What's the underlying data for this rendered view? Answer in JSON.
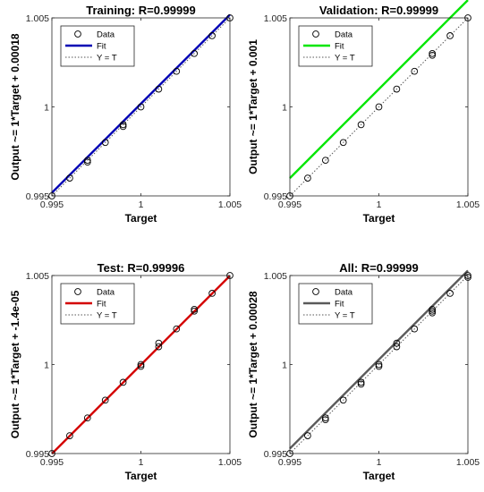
{
  "chart_data": [
    {
      "type": "scatter",
      "title": "Training: R=0.99999",
      "xlabel": "Target",
      "ylabel": "Output ~= 1*Target + 0.00018",
      "xlim": [
        0.995,
        1.005
      ],
      "ylim": [
        0.995,
        1.005
      ],
      "xticks": [
        "0.995",
        "1",
        "1.005"
      ],
      "yticks": [
        "0.995",
        "1",
        "1.005"
      ],
      "fit_color": "#0000b4",
      "legend": [
        "Data",
        "Fit",
        "Y = T"
      ],
      "legend_position": "top-left",
      "fit": {
        "slope": 1,
        "intercept": 0.00018
      },
      "points": [
        [
          0.995,
          0.995
        ],
        [
          0.996,
          0.996
        ],
        [
          0.997,
          0.9969
        ],
        [
          0.997,
          0.997
        ],
        [
          0.998,
          0.998
        ],
        [
          0.999,
          0.9989
        ],
        [
          0.999,
          0.999
        ],
        [
          1.0,
          1.0
        ],
        [
          1.001,
          1.001
        ],
        [
          1.002,
          1.002
        ],
        [
          1.003,
          1.003
        ],
        [
          1.004,
          1.004
        ],
        [
          1.005,
          1.005
        ]
      ]
    },
    {
      "type": "scatter",
      "title": "Validation: R=0.99999",
      "xlabel": "Target",
      "ylabel": "Output ~= 1*Target + 0.001",
      "xlim": [
        0.995,
        1.005
      ],
      "ylim": [
        0.995,
        1.005
      ],
      "xticks": [
        "0.995",
        "1",
        "1.005"
      ],
      "yticks": [
        "0.995",
        "1",
        "1.005"
      ],
      "fit_color": "#00e600",
      "legend": [
        "Data",
        "Fit",
        "Y = T"
      ],
      "legend_position": "top-left",
      "fit": {
        "slope": 1,
        "intercept": 0.001
      },
      "points": [
        [
          0.995,
          0.995
        ],
        [
          0.996,
          0.996
        ],
        [
          0.997,
          0.997
        ],
        [
          0.998,
          0.998
        ],
        [
          0.999,
          0.999
        ],
        [
          1.0,
          1.0
        ],
        [
          1.001,
          1.001
        ],
        [
          1.002,
          1.002
        ],
        [
          1.003,
          1.0029
        ],
        [
          1.003,
          1.003
        ],
        [
          1.004,
          1.004
        ],
        [
          1.005,
          1.005
        ]
      ]
    },
    {
      "type": "scatter",
      "title": "Test: R=0.99996",
      "xlabel": "Target",
      "ylabel": "Output ~= 1*Target + -1.4e-05",
      "xlim": [
        0.995,
        1.005
      ],
      "ylim": [
        0.995,
        1.005
      ],
      "xticks": [
        "0.995",
        "1",
        "1.005"
      ],
      "yticks": [
        "0.995",
        "1",
        "1.005"
      ],
      "fit_color": "#d40000",
      "legend": [
        "Data",
        "Fit",
        "Y = T"
      ],
      "legend_position": "top-left",
      "fit": {
        "slope": 1,
        "intercept": -1.4e-05
      },
      "points": [
        [
          0.995,
          0.995
        ],
        [
          0.996,
          0.996
        ],
        [
          0.997,
          0.997
        ],
        [
          0.998,
          0.998
        ],
        [
          0.999,
          0.999
        ],
        [
          1.0,
          0.9999
        ],
        [
          1.0,
          1.0
        ],
        [
          1.001,
          1.001
        ],
        [
          1.001,
          1.0012
        ],
        [
          1.002,
          1.002
        ],
        [
          1.003,
          1.003
        ],
        [
          1.003,
          1.0031
        ],
        [
          1.004,
          1.004
        ],
        [
          1.005,
          1.005
        ]
      ]
    },
    {
      "type": "scatter",
      "title": "All: R=0.99999",
      "xlabel": "Target",
      "ylabel": "Output ~= 1*Target + 0.00028",
      "xlim": [
        0.995,
        1.005
      ],
      "ylim": [
        0.995,
        1.005
      ],
      "xticks": [
        "0.995",
        "1",
        "1.005"
      ],
      "yticks": [
        "0.995",
        "1",
        "1.005"
      ],
      "fit_color": "#5a5a5a",
      "legend": [
        "Data",
        "Fit",
        "Y = T"
      ],
      "legend_position": "top-left",
      "fit": {
        "slope": 1,
        "intercept": 0.00028
      },
      "points": [
        [
          0.995,
          0.995
        ],
        [
          0.996,
          0.996
        ],
        [
          0.997,
          0.9969
        ],
        [
          0.997,
          0.997
        ],
        [
          0.998,
          0.998
        ],
        [
          0.999,
          0.9989
        ],
        [
          0.999,
          0.999
        ],
        [
          1.0,
          0.9999
        ],
        [
          1.0,
          1.0
        ],
        [
          1.001,
          1.001
        ],
        [
          1.001,
          1.0012
        ],
        [
          1.002,
          1.002
        ],
        [
          1.003,
          1.0029
        ],
        [
          1.003,
          1.003
        ],
        [
          1.003,
          1.0031
        ],
        [
          1.004,
          1.004
        ],
        [
          1.005,
          1.0049
        ],
        [
          1.005,
          1.005
        ]
      ]
    }
  ]
}
